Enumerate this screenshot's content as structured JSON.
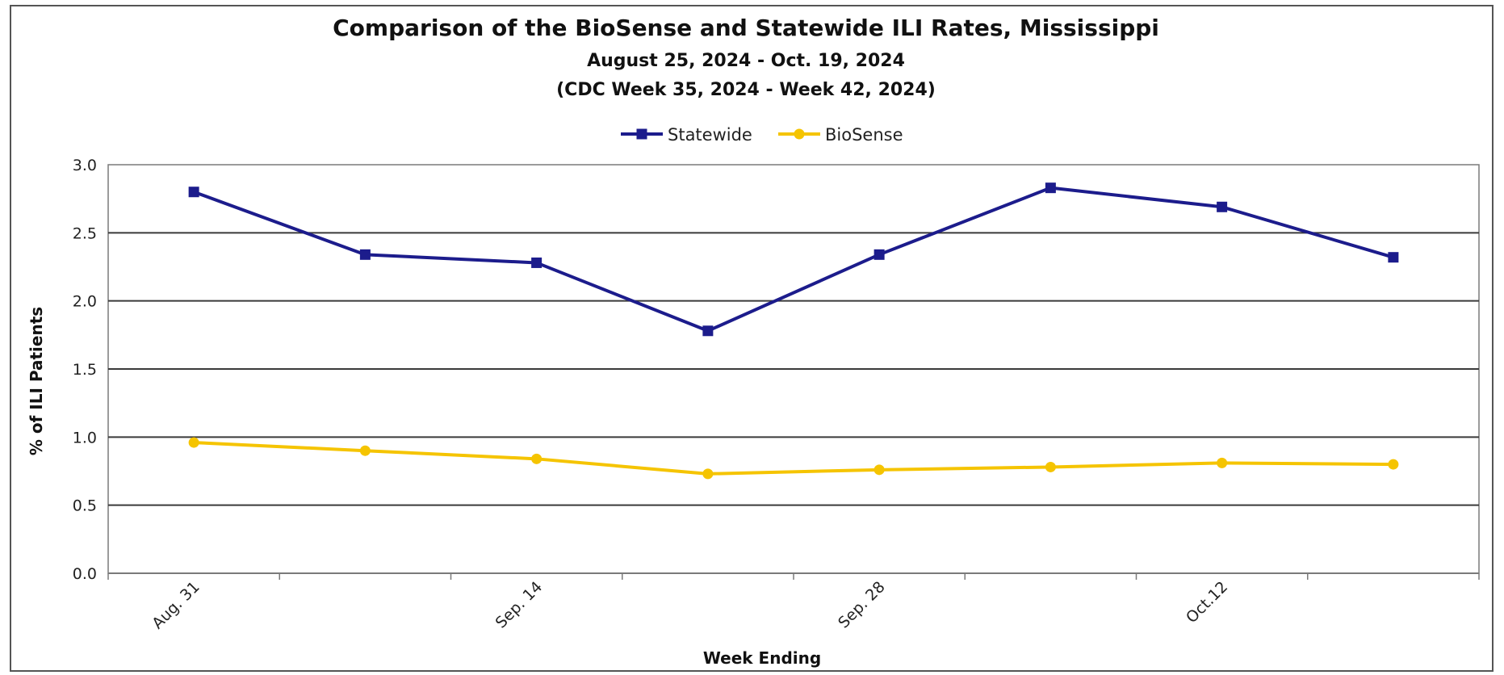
{
  "chart_data": {
    "type": "line",
    "title": "Comparison of the BioSense and Statewide ILI Rates, Mississippi",
    "subtitle_1": "August 25, 2024 - Oct. 19, 2024",
    "subtitle_2": "(CDC Week 35, 2024 - Week 42, 2024)",
    "xlabel": "Week Ending",
    "ylabel": "% of ILI Patients",
    "ylim": [
      0,
      3.0
    ],
    "yticks": [
      "0.0",
      "0.5",
      "1.0",
      "1.5",
      "2.0",
      "2.5",
      "3.0"
    ],
    "x_tick_labels": [
      "Aug. 31",
      "",
      "Sep. 14",
      "",
      "Sep. 28",
      "",
      "Oct.12",
      ""
    ],
    "legend_position": "top-center",
    "grid": "horizontal",
    "series": [
      {
        "name": "Statewide",
        "color": "#1c1c8c",
        "marker": "square",
        "values": [
          2.8,
          2.34,
          2.28,
          1.78,
          2.34,
          2.83,
          2.69,
          2.32
        ]
      },
      {
        "name": "BioSense",
        "color": "#f5c400",
        "marker": "circle",
        "values": [
          0.96,
          0.9,
          0.84,
          0.73,
          0.76,
          0.78,
          0.81,
          0.8
        ]
      }
    ]
  }
}
